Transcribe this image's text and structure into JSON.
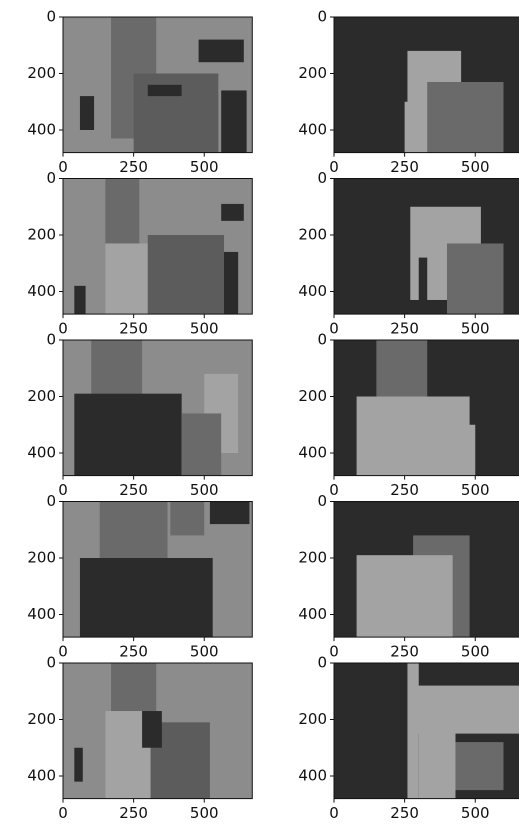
{
  "chart_data": [
    {
      "type": "image",
      "xlim": [
        0,
        670
      ],
      "ylim": [
        480,
        0
      ],
      "xticks": [
        0,
        250,
        500
      ],
      "yticks": [
        0,
        200,
        400
      ]
    },
    {
      "type": "image",
      "xlim": [
        0,
        670
      ],
      "ylim": [
        480,
        0
      ],
      "xticks": [
        0,
        250,
        500
      ],
      "yticks": [
        0,
        200,
        400
      ]
    },
    {
      "type": "image",
      "xlim": [
        0,
        670
      ],
      "ylim": [
        480,
        0
      ],
      "xticks": [
        0,
        250,
        500
      ],
      "yticks": [
        0,
        200,
        400
      ]
    },
    {
      "type": "image",
      "xlim": [
        0,
        670
      ],
      "ylim": [
        480,
        0
      ],
      "xticks": [
        0,
        250,
        500
      ],
      "yticks": [
        0,
        200,
        400
      ]
    },
    {
      "type": "image",
      "xlim": [
        0,
        670
      ],
      "ylim": [
        480,
        0
      ],
      "xticks": [
        0,
        250,
        500
      ],
      "yticks": [
        0,
        200,
        400
      ]
    },
    {
      "type": "image",
      "xlim": [
        0,
        670
      ],
      "ylim": [
        480,
        0
      ],
      "xticks": [
        0,
        250,
        500
      ],
      "yticks": [
        0,
        200,
        400
      ]
    },
    {
      "type": "image",
      "xlim": [
        0,
        670
      ],
      "ylim": [
        480,
        0
      ],
      "xticks": [
        0,
        250,
        500
      ],
      "yticks": [
        0,
        200,
        400
      ]
    },
    {
      "type": "image",
      "xlim": [
        0,
        670
      ],
      "ylim": [
        480,
        0
      ],
      "xticks": [
        0,
        250,
        500
      ],
      "yticks": [
        0,
        200,
        400
      ]
    },
    {
      "type": "image",
      "xlim": [
        0,
        670
      ],
      "ylim": [
        480,
        0
      ],
      "xticks": [
        0,
        250,
        500
      ],
      "yticks": [
        0,
        200,
        400
      ]
    },
    {
      "type": "image",
      "xlim": [
        0,
        670
      ],
      "ylim": [
        480,
        0
      ],
      "xticks": [
        0,
        250,
        500
      ],
      "yticks": [
        0,
        200,
        400
      ]
    }
  ]
}
